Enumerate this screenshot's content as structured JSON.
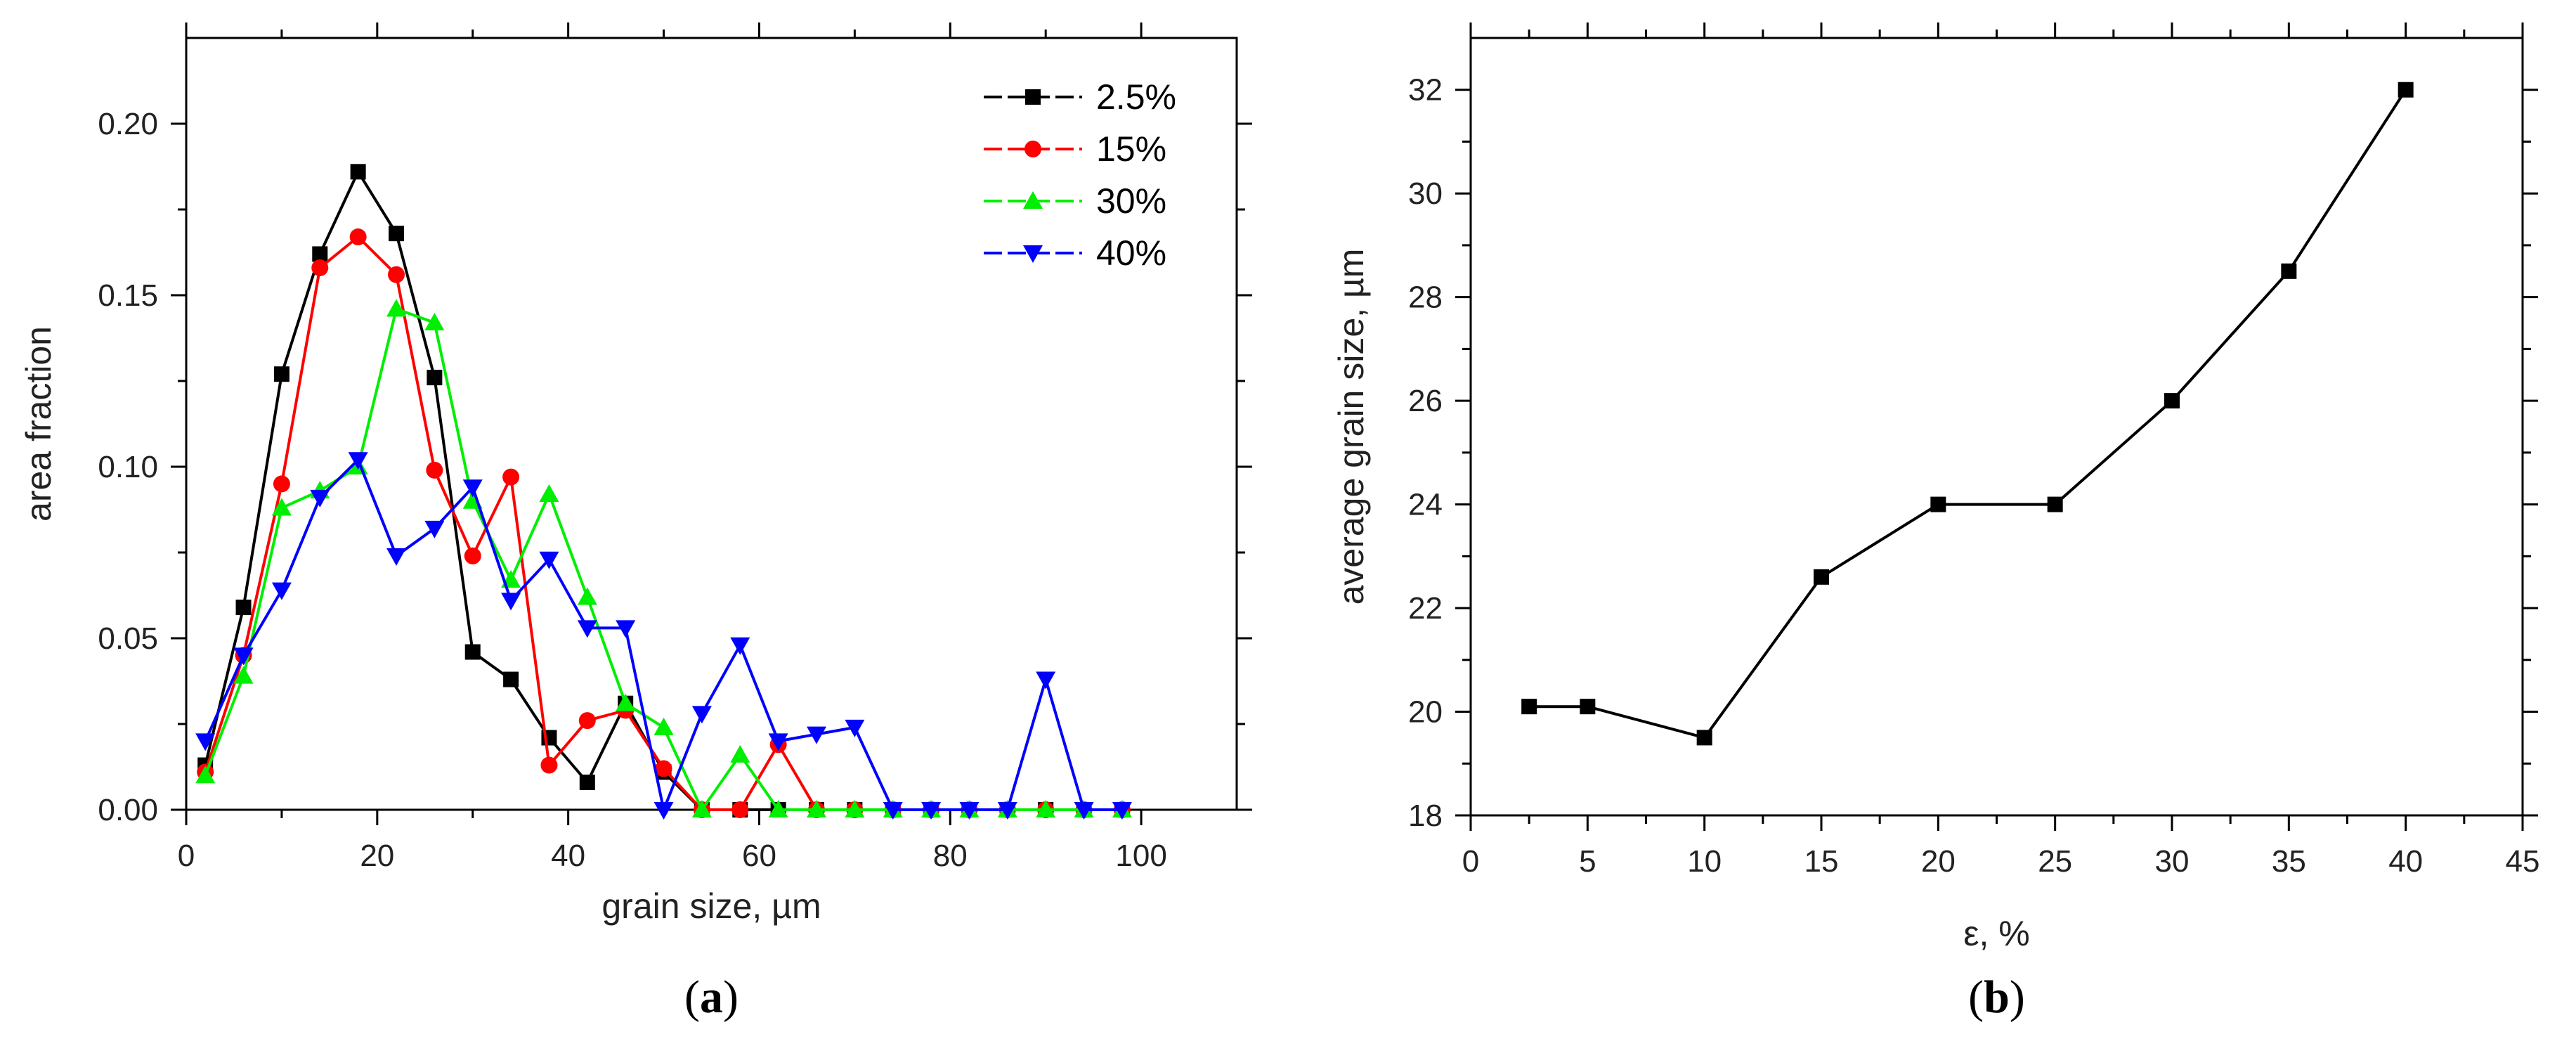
{
  "chart_data": [
    {
      "panel": "(a)",
      "panel_letter": "a",
      "type": "line",
      "xlabel": "grain size, µm",
      "ylabel": "area fraction",
      "xlim": [
        0,
        110
      ],
      "ylim": [
        0,
        0.225
      ],
      "xticks": [
        0,
        20,
        40,
        60,
        80,
        100
      ],
      "xtick_labels": [
        "0",
        "20",
        "40",
        "60",
        "80",
        "100"
      ],
      "yticks": [
        0,
        0.05,
        0.1,
        0.15,
        0.2
      ],
      "ytick_labels": [
        "0.00",
        "0.05",
        "0.10",
        "0.15",
        "0.20"
      ],
      "legend_position": "top-right",
      "series": [
        {
          "name": "2.5%",
          "color": "#000000",
          "marker": "square",
          "x": [
            2,
            6,
            10,
            14,
            18,
            22,
            26,
            30,
            34,
            38,
            42,
            46,
            50,
            54,
            58,
            62,
            66,
            70,
            74,
            78,
            82,
            86,
            90,
            94,
            98
          ],
          "y": [
            0.013,
            0.059,
            0.127,
            0.162,
            0.186,
            0.168,
            0.126,
            0.046,
            0.038,
            0.021,
            0.008,
            0.031,
            0.011,
            0,
            0,
            0,
            0,
            0,
            0,
            0,
            0,
            0,
            0,
            0,
            0
          ]
        },
        {
          "name": "15%",
          "color": "#ff0000",
          "marker": "circle",
          "x": [
            2,
            6,
            10,
            14,
            18,
            22,
            26,
            30,
            34,
            38,
            42,
            46,
            50,
            54,
            58,
            62,
            66,
            70,
            74,
            78,
            82,
            86,
            90,
            94,
            98
          ],
          "y": [
            0.011,
            0.045,
            0.095,
            0.158,
            0.167,
            0.156,
            0.099,
            0.074,
            0.097,
            0.013,
            0.026,
            0.029,
            0.012,
            0,
            0,
            0.019,
            0,
            0,
            0,
            0,
            0,
            0,
            0,
            0,
            0
          ]
        },
        {
          "name": "30%",
          "color": "#00ee00",
          "marker": "triangle-up",
          "x": [
            2,
            6,
            10,
            14,
            18,
            22,
            26,
            30,
            34,
            38,
            42,
            46,
            50,
            54,
            58,
            62,
            66,
            70,
            74,
            78,
            82,
            86,
            90,
            94,
            98
          ],
          "y": [
            0.01,
            0.039,
            0.088,
            0.093,
            0.1,
            0.146,
            0.142,
            0.09,
            0.067,
            0.092,
            0.062,
            0.031,
            0.024,
            0,
            0.016,
            0,
            0,
            0,
            0,
            0,
            0,
            0,
            0,
            0,
            0
          ]
        },
        {
          "name": "40%",
          "color": "#0000ff",
          "marker": "triangle-down",
          "x": [
            2,
            6,
            10,
            14,
            18,
            22,
            26,
            30,
            34,
            38,
            42,
            46,
            50,
            54,
            58,
            62,
            66,
            70,
            74,
            78,
            82,
            86,
            90,
            94,
            98
          ],
          "y": [
            0.02,
            0.045,
            0.064,
            0.091,
            0.102,
            0.074,
            0.082,
            0.094,
            0.061,
            0.073,
            0.053,
            0.053,
            0,
            0.028,
            0.048,
            0.02,
            0.022,
            0.024,
            0,
            0,
            0,
            0,
            0.038,
            0,
            0
          ]
        }
      ]
    },
    {
      "panel": "(b)",
      "panel_letter": "b",
      "type": "line",
      "xlabel": "ε, %",
      "ylabel": "average grain size, µm",
      "xlim": [
        0,
        45
      ],
      "ylim": [
        18,
        33
      ],
      "xticks": [
        0,
        5,
        10,
        15,
        20,
        25,
        30,
        35,
        40,
        45
      ],
      "xtick_labels": [
        "0",
        "5",
        "10",
        "15",
        "20",
        "25",
        "30",
        "35",
        "40",
        "45"
      ],
      "yticks": [
        18,
        20,
        22,
        24,
        26,
        28,
        30,
        32
      ],
      "ytick_labels": [
        "18",
        "20",
        "22",
        "24",
        "26",
        "28",
        "30",
        "32"
      ],
      "series": [
        {
          "name": "average grain size",
          "color": "#000000",
          "marker": "square",
          "x": [
            2.5,
            5,
            10,
            15,
            20,
            25,
            30,
            35,
            40
          ],
          "y": [
            20.1,
            20.1,
            19.5,
            22.6,
            24,
            24,
            26,
            28.5,
            32
          ]
        }
      ]
    }
  ]
}
